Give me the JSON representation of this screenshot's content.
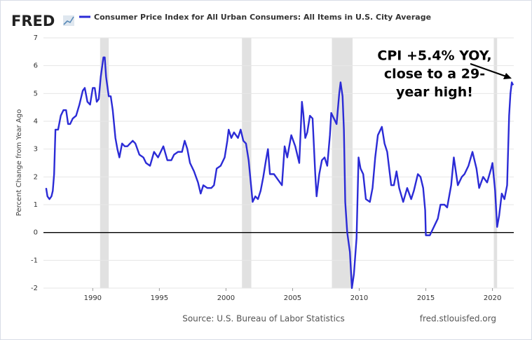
{
  "chart_data": {
    "type": "line",
    "logo": "FRED",
    "title": "Consumer Price Index for All Urban Consumers: All Items in U.S. City Average",
    "ylabel": "Percent Change from Year Ago",
    "source": "Source: U.S. Bureau of Labor Statistics",
    "site": "fred.stlouisfed.org",
    "annotation": [
      "CPI +5.4% YOY,",
      "close to a 29-",
      "year high!"
    ],
    "xlim": [
      1986.3,
      2021.6
    ],
    "ylim": [
      -2,
      7
    ],
    "xticks": [
      1990,
      1995,
      2000,
      2005,
      2010,
      2015,
      2020
    ],
    "yticks": [
      -2,
      -1,
      0,
      1,
      2,
      3,
      4,
      5,
      6,
      7
    ],
    "grid": true,
    "zero_line": true,
    "recessions": [
      [
        1990.55,
        1991.2
      ],
      [
        2001.2,
        2001.9
      ],
      [
        2007.95,
        2009.5
      ],
      [
        2020.1,
        2020.35
      ]
    ],
    "recession_color": "#e1e1e1",
    "x": [
      1986.5,
      1986.6,
      1986.75,
      1986.9,
      1987.0,
      1987.1,
      1987.2,
      1987.4,
      1987.6,
      1987.8,
      1988.0,
      1988.15,
      1988.3,
      1988.5,
      1988.75,
      1989.0,
      1989.25,
      1989.4,
      1989.6,
      1989.8,
      1990.0,
      1990.15,
      1990.3,
      1990.45,
      1990.6,
      1990.8,
      1990.9,
      1991.0,
      1991.2,
      1991.35,
      1991.5,
      1991.7,
      1991.85,
      1992.0,
      1992.2,
      1992.4,
      1992.6,
      1992.8,
      1993.0,
      1993.2,
      1993.5,
      1993.8,
      1994.0,
      1994.3,
      1994.6,
      1994.9,
      1995.1,
      1995.3,
      1995.6,
      1995.9,
      1996.1,
      1996.4,
      1996.7,
      1996.9,
      1997.1,
      1997.3,
      1997.6,
      1997.9,
      1998.1,
      1998.3,
      1998.6,
      1998.9,
      1999.1,
      1999.3,
      1999.6,
      1999.9,
      2000.1,
      2000.2,
      2000.4,
      2000.6,
      2000.9,
      2001.1,
      2001.3,
      2001.5,
      2001.7,
      2001.9,
      2002.0,
      2002.2,
      2002.4,
      2002.6,
      2002.8,
      2003.0,
      2003.15,
      2003.3,
      2003.6,
      2003.9,
      2004.2,
      2004.4,
      2004.6,
      2004.9,
      2005.2,
      2005.5,
      2005.7,
      2005.8,
      2005.95,
      2006.1,
      2006.3,
      2006.5,
      2006.7,
      2006.8,
      2007.0,
      2007.2,
      2007.4,
      2007.6,
      2007.8,
      2007.9,
      2008.1,
      2008.3,
      2008.5,
      2008.6,
      2008.75,
      2008.85,
      2008.95,
      2009.1,
      2009.3,
      2009.45,
      2009.6,
      2009.8,
      2009.95,
      2010.1,
      2010.3,
      2010.5,
      2010.8,
      2011.0,
      2011.2,
      2011.4,
      2011.7,
      2011.9,
      2012.1,
      2012.4,
      2012.6,
      2012.8,
      2013.0,
      2013.3,
      2013.6,
      2013.9,
      2014.1,
      2014.4,
      2014.6,
      2014.8,
      2014.95,
      2015.0,
      2015.3,
      2015.6,
      2015.9,
      2016.1,
      2016.4,
      2016.6,
      2016.9,
      2017.1,
      2017.4,
      2017.7,
      2017.9,
      2018.2,
      2018.5,
      2018.8,
      2019.0,
      2019.3,
      2019.6,
      2019.9,
      2020.0,
      2020.2,
      2020.35,
      2020.5,
      2020.7,
      2020.9,
      2021.1,
      2021.25,
      2021.35,
      2021.45,
      2021.55
    ],
    "series": [
      {
        "name": "Consumer Price Index for All Urban Consumers: All Items in U.S. City Average",
        "color": "#2b2bd6",
        "values": [
          1.6,
          1.3,
          1.2,
          1.3,
          1.5,
          2.1,
          3.7,
          3.7,
          4.2,
          4.4,
          4.4,
          3.9,
          3.9,
          4.1,
          4.2,
          4.6,
          5.1,
          5.2,
          4.7,
          4.6,
          5.2,
          5.2,
          4.7,
          4.8,
          5.6,
          6.3,
          6.3,
          5.6,
          4.9,
          4.9,
          4.4,
          3.4,
          3.0,
          2.7,
          3.2,
          3.1,
          3.1,
          3.2,
          3.3,
          3.2,
          2.8,
          2.7,
          2.5,
          2.4,
          2.9,
          2.7,
          2.9,
          3.1,
          2.6,
          2.6,
          2.8,
          2.9,
          2.9,
          3.3,
          3.0,
          2.5,
          2.2,
          1.8,
          1.4,
          1.7,
          1.6,
          1.6,
          1.7,
          2.3,
          2.4,
          2.7,
          3.3,
          3.7,
          3.4,
          3.6,
          3.4,
          3.7,
          3.3,
          3.2,
          2.6,
          1.6,
          1.1,
          1.3,
          1.2,
          1.5,
          2.0,
          2.6,
          3.0,
          2.1,
          2.1,
          1.9,
          1.7,
          3.1,
          2.7,
          3.5,
          3.1,
          2.5,
          4.7,
          4.3,
          3.4,
          3.6,
          4.2,
          4.1,
          2.1,
          1.3,
          2.1,
          2.6,
          2.7,
          2.4,
          3.5,
          4.3,
          4.1,
          3.9,
          5.0,
          5.4,
          4.9,
          3.7,
          1.1,
          0.0,
          -0.7,
          -2.0,
          -1.5,
          -0.2,
          2.7,
          2.3,
          2.1,
          1.2,
          1.1,
          1.6,
          2.7,
          3.5,
          3.8,
          3.2,
          2.9,
          1.7,
          1.7,
          2.2,
          1.6,
          1.1,
          1.6,
          1.2,
          1.5,
          2.1,
          2.0,
          1.6,
          0.8,
          -0.1,
          -0.1,
          0.2,
          0.5,
          1.0,
          1.0,
          0.9,
          1.7,
          2.7,
          1.7,
          2.0,
          2.1,
          2.4,
          2.9,
          2.3,
          1.6,
          2.0,
          1.8,
          2.3,
          2.5,
          1.5,
          0.2,
          0.6,
          1.4,
          1.2,
          1.7,
          4.2,
          5.0,
          5.4,
          5.3
        ]
      }
    ]
  }
}
